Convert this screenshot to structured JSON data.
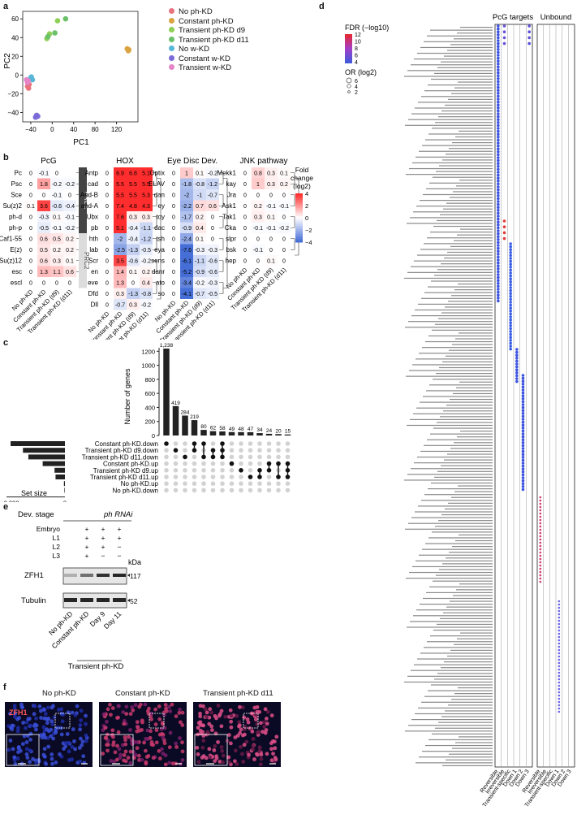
{
  "panels": {
    "a": "a",
    "b": "b",
    "c": "c",
    "d": "d",
    "e": "e",
    "f": "f"
  },
  "pca": {
    "xlabel": "PC1",
    "ylabel": "PC2",
    "xticks": [
      "−40",
      "0",
      "40",
      "80",
      "120"
    ],
    "yticks": [
      "60",
      "40",
      "20",
      "0",
      "−20",
      "−40"
    ],
    "legend": [
      {
        "label": "No ph-KD",
        "color": "#e8737e"
      },
      {
        "label": "Constant ph-KD",
        "color": "#d9a441"
      },
      {
        "label": "Transient ph-KD d9",
        "color": "#8fcf55"
      },
      {
        "label": "Transient ph-KD d11",
        "color": "#6bc06a"
      },
      {
        "label": "No w-KD",
        "color": "#58b7d6"
      },
      {
        "label": "Constant w-KD",
        "color": "#7a6bd8"
      },
      {
        "label": "Transient w-KD",
        "color": "#e585c8"
      }
    ]
  },
  "chart_data": [
    {
      "type": "scatter",
      "xlabel": "PC1",
      "ylabel": "PC2",
      "xlim": [
        -55,
        160
      ],
      "ylim": [
        -50,
        68
      ],
      "series": [
        {
          "name": "No ph-KD",
          "points": [
            [
              -46,
              -12
            ],
            [
              -43,
              -10
            ],
            [
              -44,
              -14
            ]
          ]
        },
        {
          "name": "Constant ph-KD",
          "points": [
            [
              140,
              28
            ],
            [
              142,
              26
            ],
            [
              143,
              27
            ]
          ]
        },
        {
          "name": "Transient ph-KD d9",
          "points": [
            [
              -10,
              39
            ],
            [
              10,
              58
            ],
            [
              -5,
              44
            ]
          ]
        },
        {
          "name": "Transient ph-KD d11",
          "points": [
            [
              -8,
              41
            ],
            [
              25,
              60
            ],
            [
              5,
              45
            ]
          ]
        },
        {
          "name": "No w-KD",
          "points": [
            [
              -39,
              -2
            ],
            [
              -37,
              -5
            ],
            [
              -40,
              -3
            ]
          ]
        },
        {
          "name": "Constant w-KD",
          "points": [
            [
              -31,
              -45
            ],
            [
              -27,
              -44
            ],
            [
              -29,
              -43
            ]
          ]
        },
        {
          "name": "Transient w-KD",
          "points": [
            [
              -48,
              -5
            ],
            [
              -46,
              -8
            ],
            [
              -45,
              -6
            ]
          ]
        }
      ]
    },
    {
      "type": "bar",
      "title": "",
      "ylabel": "Number of genes",
      "ylim": [
        0,
        1250
      ],
      "values": [
        1238,
        419,
        284,
        219,
        80,
        62,
        58,
        49,
        48,
        47,
        34,
        24,
        20,
        15
      ]
    }
  ],
  "heatmaps": {
    "cols": [
      "No ph-KD",
      "Constant ph-KD",
      "Transient ph-KD (d9)",
      "Transient ph-KD (d11)"
    ],
    "pcg": {
      "title": "PcG",
      "rows": [
        "Pc",
        "Psc",
        "Sce",
        "Su(z)2",
        "ph-d",
        "ph-p",
        "Caf1-55",
        "E(z)",
        "Su(z)12",
        "esc",
        "escl"
      ],
      "vals": [
        [
          0,
          -0.1,
          0,
          ""
        ],
        [
          0,
          1.8,
          -0.2,
          -0.2
        ],
        [
          0,
          0,
          -0.1,
          0
        ],
        [
          0.1,
          3.6,
          -0.6,
          -0.4
        ],
        [
          0,
          -0.3,
          0.1,
          -0.1
        ],
        [
          0,
          -0.5,
          -0.1,
          -0.2
        ],
        [
          0,
          0.6,
          0.5,
          0.2
        ],
        [
          0,
          0.5,
          0.2,
          0.2
        ],
        [
          0,
          0.6,
          0.3,
          0.1
        ],
        [
          0,
          1.3,
          1.1,
          0.6
        ],
        [
          0,
          0,
          0,
          0
        ]
      ],
      "groups": [
        {
          "label": "PRC1",
          "rows": 6
        },
        {
          "label": "PRC2",
          "rows": 5
        }
      ]
    },
    "hox": {
      "title": "HOX",
      "rows": [
        "Antp",
        "cad",
        "Abd-B",
        "abd-A",
        "Ubx",
        "pb",
        "hth",
        "lab",
        "Scr",
        "en",
        "eve",
        "Dfd",
        "Dll"
      ],
      "vals": [
        [
          0,
          6.9,
          6.8,
          5.1
        ],
        [
          0,
          5.5,
          5.5,
          5.5
        ],
        [
          0,
          5.5,
          5.5,
          5.3
        ],
        [
          0,
          7.4,
          4.8,
          4.3
        ],
        [
          0,
          7.6,
          0.3,
          0.3
        ],
        [
          0,
          5.1,
          -0.4,
          -1.1
        ],
        [
          0,
          -2,
          -0.4,
          -1.2
        ],
        [
          0,
          -2.5,
          -1.3,
          -0.5
        ],
        [
          0,
          3.5,
          -0.6,
          -0.2
        ],
        [
          0,
          1.4,
          0.1,
          0.2
        ],
        [
          0,
          1.3,
          0,
          0.4
        ],
        [
          0,
          0.3,
          -1.3,
          -0.8
        ],
        [
          0,
          -0.7,
          0.3,
          -0.2
        ]
      ]
    },
    "eye": {
      "title": "Eye Disc Dev.",
      "rows": [
        "Optix",
        "ELAV",
        "dan",
        "ey",
        "toy",
        "dac",
        "tsh",
        "eya",
        "sens",
        "danr",
        "ato",
        "so"
      ],
      "vals": [
        [
          0,
          1,
          0.1,
          -0.2
        ],
        [
          0,
          -1.8,
          -0.8,
          -1.2
        ],
        [
          0,
          -2,
          -1,
          -0.7
        ],
        [
          0,
          -2.2,
          0.7,
          0.6
        ],
        [
          0,
          -1.7,
          0.2,
          0
        ],
        [
          0,
          -0.9,
          0.4,
          0
        ],
        [
          0,
          -2.4,
          0.1,
          0
        ],
        [
          0,
          -7.6,
          -0.3,
          -0.3
        ],
        [
          0,
          -6.1,
          -1.1,
          -0.6
        ],
        [
          0,
          -5.2,
          -0.9,
          -0.6
        ],
        [
          0,
          -3.4,
          -0.2,
          -0.3
        ],
        [
          0,
          -4.1,
          -0.7,
          -0.5
        ]
      ]
    },
    "jnk": {
      "title": "JNK pathway",
      "rows": [
        "Mekk1",
        "kay",
        "Jra",
        "Ask1",
        "Tak1",
        "Cka",
        "slpr",
        "bsk",
        "hep"
      ],
      "vals": [
        [
          0,
          0.8,
          0.3,
          0.1
        ],
        [
          0,
          1,
          0.3,
          0.2
        ],
        [
          0,
          0,
          0,
          0
        ],
        [
          0,
          0.2,
          -0.1,
          -0.1
        ],
        [
          0,
          0.3,
          0.1,
          0
        ],
        [
          0,
          -0.1,
          -0.1,
          -0.2
        ],
        [
          0,
          0,
          0,
          0
        ],
        [
          0,
          -0.1,
          0,
          0
        ],
        [
          0,
          0,
          0.1,
          0
        ]
      ]
    },
    "scale": {
      "title_l1": "Fold",
      "title_l2": "change",
      "title_l3": "(log2)",
      "ticks": [
        "4",
        "2",
        "0",
        "−2",
        "−4"
      ]
    }
  },
  "upset": {
    "ylabel": "Number of genes",
    "yticks": [
      "1200",
      "1000",
      "800",
      "600",
      "400",
      "200",
      "0"
    ],
    "bar_labels": [
      "1,238",
      "419",
      "284",
      "219",
      "80",
      "62",
      "58",
      "49",
      "48",
      "47",
      "34",
      "24",
      "20",
      "15"
    ],
    "sets": [
      "Constant ph-KD.down",
      "Transient ph-KD d9.down",
      "Transient ph-KD d11.down",
      "Constant ph-KD.up",
      "Transient ph-KD d9.up",
      "Transient ph-KD d11.up",
      "No ph-KD.up",
      "No ph-KD.down"
    ],
    "set_sizes": [
      2200,
      1700,
      1480,
      900,
      420,
      380,
      40,
      20
    ],
    "set_size_label": "Set size",
    "set_size_ticks": [
      "2,000",
      "0"
    ],
    "matrix": [
      [
        0
      ],
      [
        1
      ],
      [
        2
      ],
      [
        0,
        1
      ],
      [
        0,
        2
      ],
      [
        1,
        2
      ],
      [
        0,
        1,
        2
      ],
      [
        3
      ],
      [
        4
      ],
      [
        5
      ],
      [
        4,
        5
      ],
      [
        3,
        4
      ],
      [
        3,
        5
      ],
      [
        3,
        4,
        5
      ]
    ]
  },
  "dotplot": {
    "header_pcg": "PcG targets",
    "header_unbound": "Unbound",
    "fdr_title": "FDR (−log10)",
    "fdr_ticks": [
      "12",
      "10",
      "8",
      "6",
      "4"
    ],
    "or_title": "OR (log2)",
    "or_ticks": [
      "6",
      "4",
      "2"
    ],
    "cols": [
      "Reversible",
      "Irreversible",
      "Transient-specific",
      "Down 1",
      "Down 2",
      "Down 3"
    ]
  },
  "blot": {
    "dev_stage": "Dev. stage",
    "rnai": "ph RNAi",
    "stages": [
      "Embryo",
      "L1",
      "L2",
      "L3"
    ],
    "marks": [
      [
        "",
        "+",
        "+",
        "+"
      ],
      [
        "",
        "+",
        "+",
        "+"
      ],
      [
        "",
        "+",
        "+",
        "−"
      ],
      [
        "",
        "+",
        "−",
        "−"
      ]
    ],
    "rows": [
      "ZFH1",
      "Tubulin"
    ],
    "kda": "kDa",
    "mw1": "117",
    "mw2": "52",
    "lanes": [
      "No ph-KD",
      "Constant ph-KD",
      "Day 9",
      "Day 11"
    ],
    "bracket": "Transient ph-KD"
  },
  "micro": {
    "titles": [
      "No ph-KD",
      "Constant ph-KD",
      "Transient ph-KD d11"
    ],
    "stain": "ZFH1"
  }
}
